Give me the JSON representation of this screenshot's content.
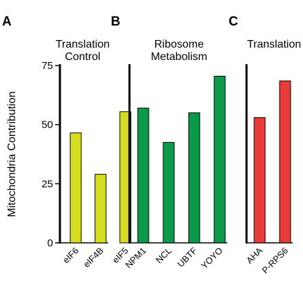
{
  "chart_data": [
    {
      "type": "bar",
      "panel": "A",
      "title": "Translation\nControl",
      "ylabel": "Mitochondria Contribution",
      "ylim": [
        0,
        75
      ],
      "yticks": [
        0,
        25,
        50,
        75
      ],
      "color": "#d6dd1f",
      "categories": [
        "eIF6",
        "eIF4B",
        "eIF5"
      ],
      "values": [
        46.5,
        29,
        55.5
      ]
    },
    {
      "type": "bar",
      "panel": "B",
      "title": "Ribosome\nMetabolism",
      "ylim": [
        0,
        75
      ],
      "color": "#0a9a4a",
      "categories": [
        "NPM1",
        "NCL",
        "UBTF",
        "YOYO"
      ],
      "values": [
        57,
        42.5,
        55,
        70.5
      ]
    },
    {
      "type": "bar",
      "panel": "C",
      "title": "Translation",
      "ylim": [
        0,
        75
      ],
      "color": "#ea3a3a",
      "categories": [
        "AHA",
        "P-RPS6"
      ],
      "values": [
        53,
        68.5
      ]
    }
  ]
}
